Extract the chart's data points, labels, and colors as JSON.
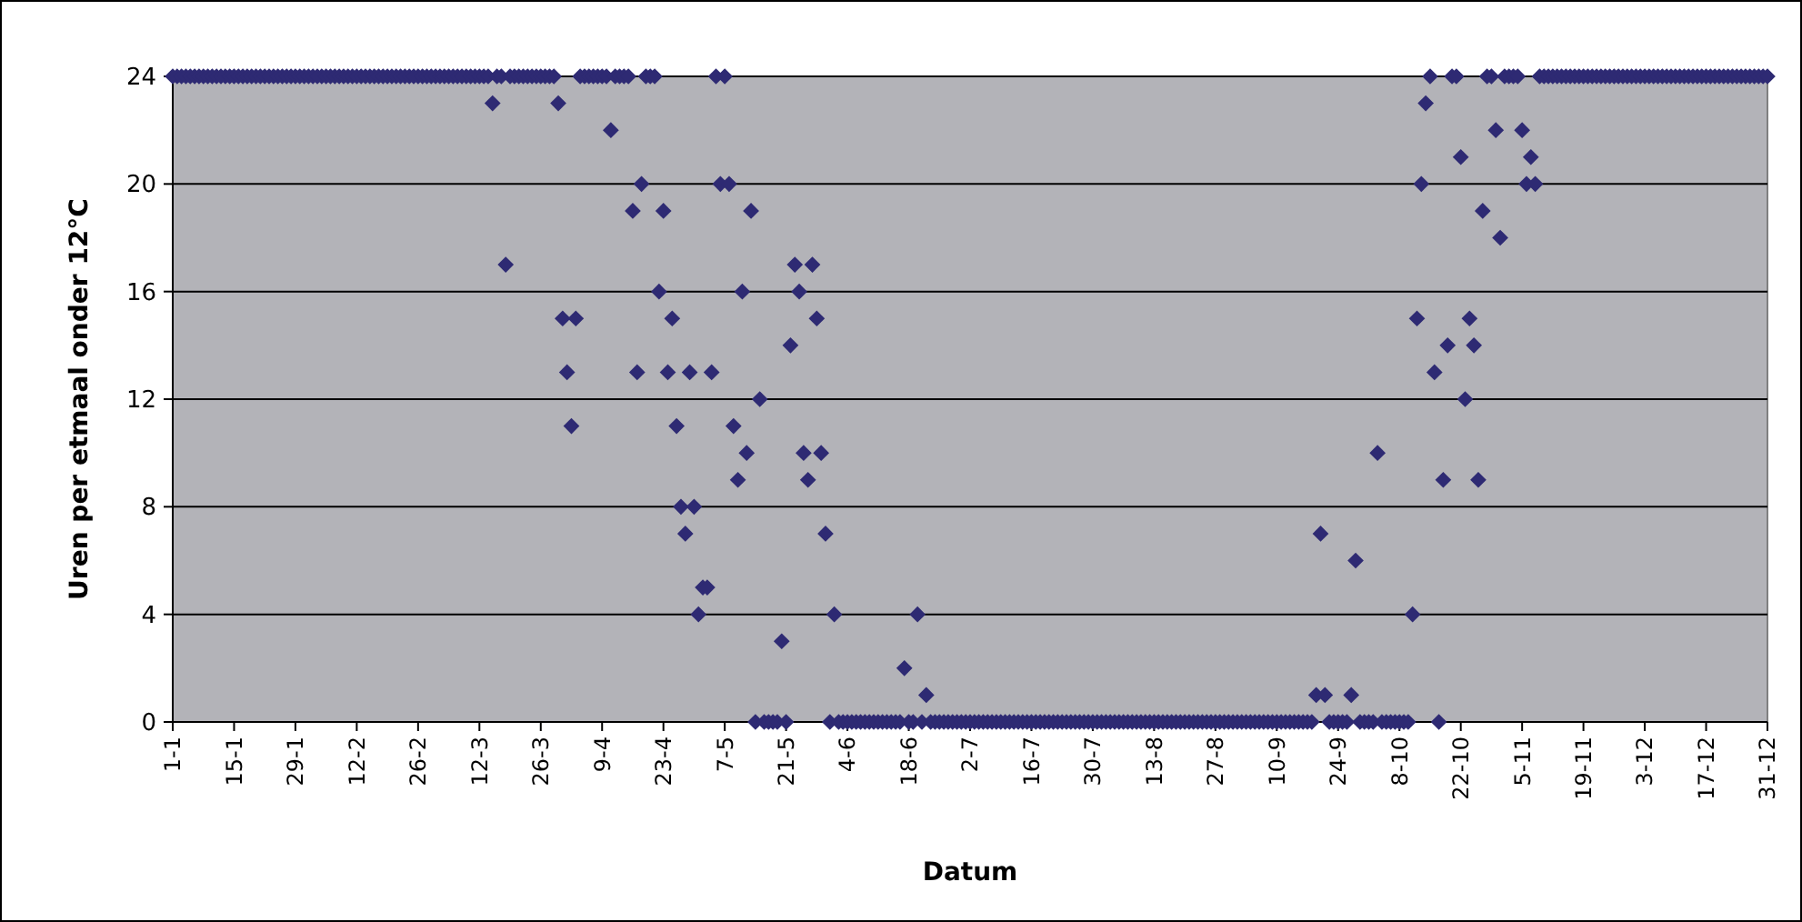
{
  "chart_data": {
    "type": "scatter",
    "xlabel": "Datum",
    "ylabel": "Uren per etmaal onder 12°C",
    "categories": [
      "1-1",
      null,
      null,
      null,
      null,
      null,
      null,
      null,
      null,
      null,
      null,
      null,
      null,
      null,
      "15-1",
      null,
      null,
      null,
      null,
      null,
      null,
      null,
      null,
      null,
      null,
      null,
      null,
      null,
      "29-1",
      null,
      null,
      null,
      null,
      null,
      null,
      null,
      null,
      null,
      null,
      null,
      null,
      null,
      "12-2",
      null,
      null,
      null,
      null,
      null,
      null,
      null,
      null,
      null,
      null,
      null,
      null,
      null,
      "26-2",
      null,
      null,
      null,
      null,
      null,
      null,
      null,
      null,
      null,
      null,
      null,
      null,
      null,
      "12-3",
      null,
      null,
      null,
      null,
      null,
      null,
      null,
      null,
      null,
      null,
      null,
      null,
      null,
      "26-3",
      null,
      null,
      null,
      null,
      null,
      null,
      null,
      null,
      null,
      null,
      null,
      null,
      null,
      "9-4",
      null,
      null,
      null,
      null,
      null,
      null,
      null,
      null,
      null,
      null,
      null,
      null,
      null,
      "23-4",
      null,
      null,
      null,
      null,
      null,
      null,
      null,
      null,
      null,
      null,
      null,
      null,
      null,
      "7-5",
      null,
      null,
      null,
      null,
      null,
      null,
      null,
      null,
      null,
      null,
      null,
      null,
      null,
      "21-5",
      null,
      null,
      null,
      null,
      null,
      null,
      null,
      null,
      null,
      null,
      null,
      null,
      null,
      "4-6",
      null,
      null,
      null,
      null,
      null,
      null,
      null,
      null,
      null,
      null,
      null,
      null,
      null,
      "18-6",
      null,
      null,
      null,
      null,
      null,
      null,
      null,
      null,
      null,
      null,
      null,
      null,
      null,
      "2-7",
      null,
      null,
      null,
      null,
      null,
      null,
      null,
      null,
      null,
      null,
      null,
      null,
      null,
      "16-7",
      null,
      null,
      null,
      null,
      null,
      null,
      null,
      null,
      null,
      null,
      null,
      null,
      null,
      "30-7",
      null,
      null,
      null,
      null,
      null,
      null,
      null,
      null,
      null,
      null,
      null,
      null,
      null,
      "13-8",
      null,
      null,
      null,
      null,
      null,
      null,
      null,
      null,
      null,
      null,
      null,
      null,
      null,
      "27-8",
      null,
      null,
      null,
      null,
      null,
      null,
      null,
      null,
      null,
      null,
      null,
      null,
      null,
      "10-9",
      null,
      null,
      null,
      null,
      null,
      null,
      null,
      null,
      null,
      null,
      null,
      null,
      null,
      "24-9",
      null,
      null,
      null,
      null,
      null,
      null,
      null,
      null,
      null,
      null,
      null,
      null,
      null,
      "8-10",
      null,
      null,
      null,
      null,
      null,
      null,
      null,
      null,
      null,
      null,
      null,
      null,
      null,
      "22-10",
      null,
      null,
      null,
      null,
      null,
      null,
      null,
      null,
      null,
      null,
      null,
      null,
      null,
      "5-11",
      null,
      null,
      null,
      null,
      null,
      null,
      null,
      null,
      null,
      null,
      null,
      null,
      null,
      "19-11",
      null,
      null,
      null,
      null,
      null,
      null,
      null,
      null,
      null,
      null,
      null,
      null,
      null,
      "3-12",
      null,
      null,
      null,
      null,
      null,
      null,
      null,
      null,
      null,
      null,
      null,
      null,
      null,
      "17-12",
      null,
      null,
      null,
      null,
      null,
      null,
      null,
      null,
      null,
      null,
      null,
      null,
      null,
      "31-12"
    ],
    "series": [
      {
        "color": "#2e2a73",
        "values": [
          24,
          24,
          24,
          24,
          24,
          24,
          24,
          24,
          24,
          24,
          24,
          24,
          24,
          24,
          24,
          24,
          24,
          24,
          24,
          24,
          24,
          24,
          24,
          24,
          24,
          24,
          24,
          24,
          24,
          24,
          24,
          24,
          24,
          24,
          24,
          24,
          24,
          24,
          24,
          24,
          24,
          24,
          24,
          24,
          24,
          24,
          24,
          24,
          24,
          24,
          24,
          24,
          24,
          24,
          24,
          24,
          24,
          24,
          24,
          24,
          24,
          24,
          24,
          24,
          24,
          24,
          24,
          24,
          24,
          24,
          24,
          24,
          24,
          23,
          24,
          24,
          17,
          24,
          24,
          24,
          24,
          24,
          24,
          24,
          24,
          24,
          24,
          24,
          23,
          15,
          13,
          11,
          15,
          24,
          24,
          24,
          24,
          24,
          24,
          24,
          22,
          24,
          24,
          24,
          24,
          19,
          13,
          20,
          24,
          24,
          24,
          16,
          19,
          13,
          15,
          11,
          8,
          7,
          13,
          8,
          4,
          5,
          5,
          13,
          24,
          20,
          24,
          20,
          11,
          9,
          16,
          10,
          19,
          0,
          12,
          0,
          0,
          0,
          0,
          3,
          0,
          14,
          17,
          16,
          10,
          9,
          17,
          15,
          10,
          7,
          0,
          4,
          0,
          0,
          0,
          0,
          0,
          0,
          0,
          0,
          0,
          0,
          0,
          0,
          0,
          0,
          0,
          2,
          0,
          0,
          4,
          0,
          1,
          0,
          0,
          0,
          0,
          0,
          0,
          0,
          0,
          0,
          0,
          0,
          0,
          0,
          0,
          0,
          0,
          0,
          0,
          0,
          0,
          0,
          0,
          0,
          0,
          0,
          0,
          0,
          0,
          0,
          0,
          0,
          0,
          0,
          0,
          0,
          0,
          0,
          0,
          0,
          0,
          0,
          0,
          0,
          0,
          0,
          0,
          0,
          0,
          0,
          0,
          0,
          0,
          0,
          0,
          0,
          0,
          0,
          0,
          0,
          0,
          0,
          0,
          0,
          0,
          0,
          0,
          0,
          0,
          0,
          0,
          0,
          0,
          0,
          0,
          0,
          0,
          0,
          0,
          0,
          0,
          0,
          0,
          0,
          0,
          0,
          0,
          0,
          0,
          1,
          7,
          1,
          0,
          0,
          0,
          0,
          0,
          1,
          6,
          0,
          0,
          0,
          0,
          10,
          0,
          0,
          0,
          0,
          0,
          0,
          0,
          4,
          15,
          20,
          23,
          24,
          13,
          0,
          9,
          14,
          24,
          24,
          21,
          12,
          15,
          14,
          9,
          19,
          24,
          24,
          22,
          18,
          24,
          24,
          24,
          24,
          22,
          20,
          21,
          20,
          24,
          24,
          24,
          24,
          24,
          24,
          24,
          24,
          24,
          24,
          24,
          24,
          24,
          24,
          24,
          24,
          24,
          24,
          24,
          24,
          24,
          24,
          24,
          24,
          24,
          24,
          24,
          24,
          24,
          24,
          24,
          24,
          24,
          24,
          24,
          24,
          24,
          24,
          24,
          24,
          24,
          24,
          24,
          24,
          24,
          24,
          24,
          24,
          24,
          24,
          24,
          24,
          24
        ]
      }
    ],
    "ylim": [
      0,
      24
    ],
    "yticks": [
      0,
      4,
      8,
      12,
      16,
      20,
      24
    ],
    "grid": "y",
    "marker": "diamond"
  }
}
